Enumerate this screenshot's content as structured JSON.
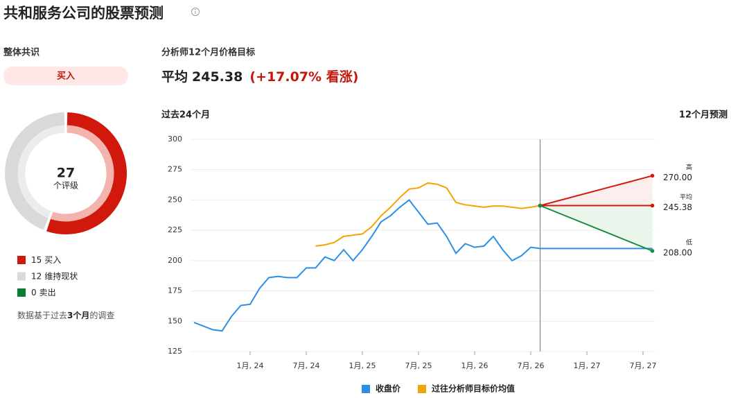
{
  "header": {
    "title": "共和服务公司的股票预测"
  },
  "consensus": {
    "label": "整体共识",
    "rating": "买入"
  },
  "price_target": {
    "label": "分析师12个月价格目标",
    "average_label": "平均",
    "average": 245.38,
    "change": "(+17.07% 看涨)"
  },
  "note": {
    "before": "数据基于过去",
    "bold": "3个月",
    "after": "的调查"
  },
  "chart_data": [
    {
      "type": "pie",
      "donut": true,
      "center_value": 27,
      "center_label": "个评级",
      "categories": [
        "买入",
        "维持现状",
        "卖出"
      ],
      "values": [
        15,
        12,
        0
      ],
      "colors": [
        "#d0190c",
        "#d9d9d9",
        "#0b7d32"
      ],
      "inner_colors": [
        "#f4b4ae",
        "#ececec",
        "#b9dcc4"
      ]
    },
    {
      "type": "line",
      "left_label": "过去24个月",
      "right_label": "12个月预测",
      "xlim": [
        "2023-07",
        "2027-09"
      ],
      "xticks": [
        {
          "value": "2024-01",
          "label": "1月, 24"
        },
        {
          "value": "2024-07",
          "label": "7月, 24"
        },
        {
          "value": "2025-01",
          "label": "1月, 25"
        },
        {
          "value": "2025-07",
          "label": "7月, 25"
        },
        {
          "value": "2026-01",
          "label": "1月, 26"
        },
        {
          "value": "2026-07",
          "label": "7月, 26"
        },
        {
          "value": "2027-01",
          "label": "1月, 27"
        },
        {
          "value": "2027-07",
          "label": "7月, 27"
        }
      ],
      "ylim": [
        125,
        300
      ],
      "yticks": [
        125,
        150,
        175,
        200,
        225,
        250,
        275,
        300
      ],
      "grid": true,
      "series": [
        {
          "name": "收盘价",
          "color": "#2b8ee8",
          "x": [
            "2023-07",
            "2023-08",
            "2023-09",
            "2023-10",
            "2023-11",
            "2023-12",
            "2024-01",
            "2024-02",
            "2024-03",
            "2024-04",
            "2024-05",
            "2024-06",
            "2024-07",
            "2024-08",
            "2024-09",
            "2024-10",
            "2024-11",
            "2024-12",
            "2025-01",
            "2025-02",
            "2025-03",
            "2025-04",
            "2025-05",
            "2025-06",
            "2025-07",
            "2025-08",
            "2025-09",
            "2025-10",
            "2025-11",
            "2025-12",
            "2026-01",
            "2026-02",
            "2026-03",
            "2026-04",
            "2026-05",
            "2026-06",
            "2026-07",
            "2026-08",
            "2027-08"
          ],
          "values": [
            149,
            146,
            143,
            142,
            154,
            163,
            164,
            177,
            186,
            187,
            186,
            186,
            194,
            194,
            203,
            200,
            209,
            200,
            209,
            220,
            232,
            237,
            244,
            250,
            240,
            230,
            231,
            220,
            206,
            214,
            211,
            212,
            220,
            209,
            200,
            204,
            211,
            210,
            210
          ]
        },
        {
          "name": "过往分析师目标价均值",
          "color": "#f5a300",
          "x": [
            "2024-08",
            "2024-09",
            "2024-10",
            "2024-11",
            "2024-12",
            "2025-01",
            "2025-02",
            "2025-03",
            "2025-04",
            "2025-05",
            "2025-06",
            "2025-07",
            "2025-08",
            "2025-09",
            "2025-10",
            "2025-11",
            "2025-12",
            "2026-01",
            "2026-02",
            "2026-03",
            "2026-04",
            "2026-05",
            "2026-06",
            "2026-07",
            "2026-08"
          ],
          "values": [
            212,
            213,
            215,
            220,
            221,
            222,
            228,
            237,
            244,
            252,
            259,
            260,
            264,
            263,
            260,
            248,
            246,
            245,
            244,
            245,
            245,
            244,
            243,
            244,
            245.38
          ]
        }
      ],
      "forecast": {
        "x": [
          "2026-08",
          "2027-08"
        ],
        "lines": [
          {
            "name": "高",
            "color": "#d0190c",
            "values": [
              245.38,
              270
            ],
            "end_label": "270.00"
          },
          {
            "name": "平均",
            "color": "#d0190c",
            "values": [
              245.38,
              245.38
            ],
            "end_label": "245.38"
          },
          {
            "name": "低",
            "color": "#178a3e",
            "values": [
              245.38,
              208
            ],
            "end_label": "208.00"
          }
        ]
      }
    }
  ]
}
